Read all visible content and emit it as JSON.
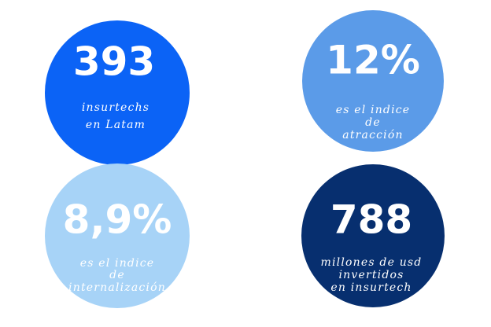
{
  "stats": [
    {
      "value": "393",
      "caption": [
        "insurtechs",
        "en Latam"
      ]
    },
    {
      "value": "12%",
      "caption": [
        "es el indice",
        "de",
        "atracción"
      ]
    },
    {
      "value": "8,9%",
      "caption": [
        "es el indice",
        "de",
        "internalización"
      ]
    },
    {
      "value": "788",
      "caption": [
        "millones de usd",
        "invertidos",
        "en insurtech"
      ]
    }
  ]
}
